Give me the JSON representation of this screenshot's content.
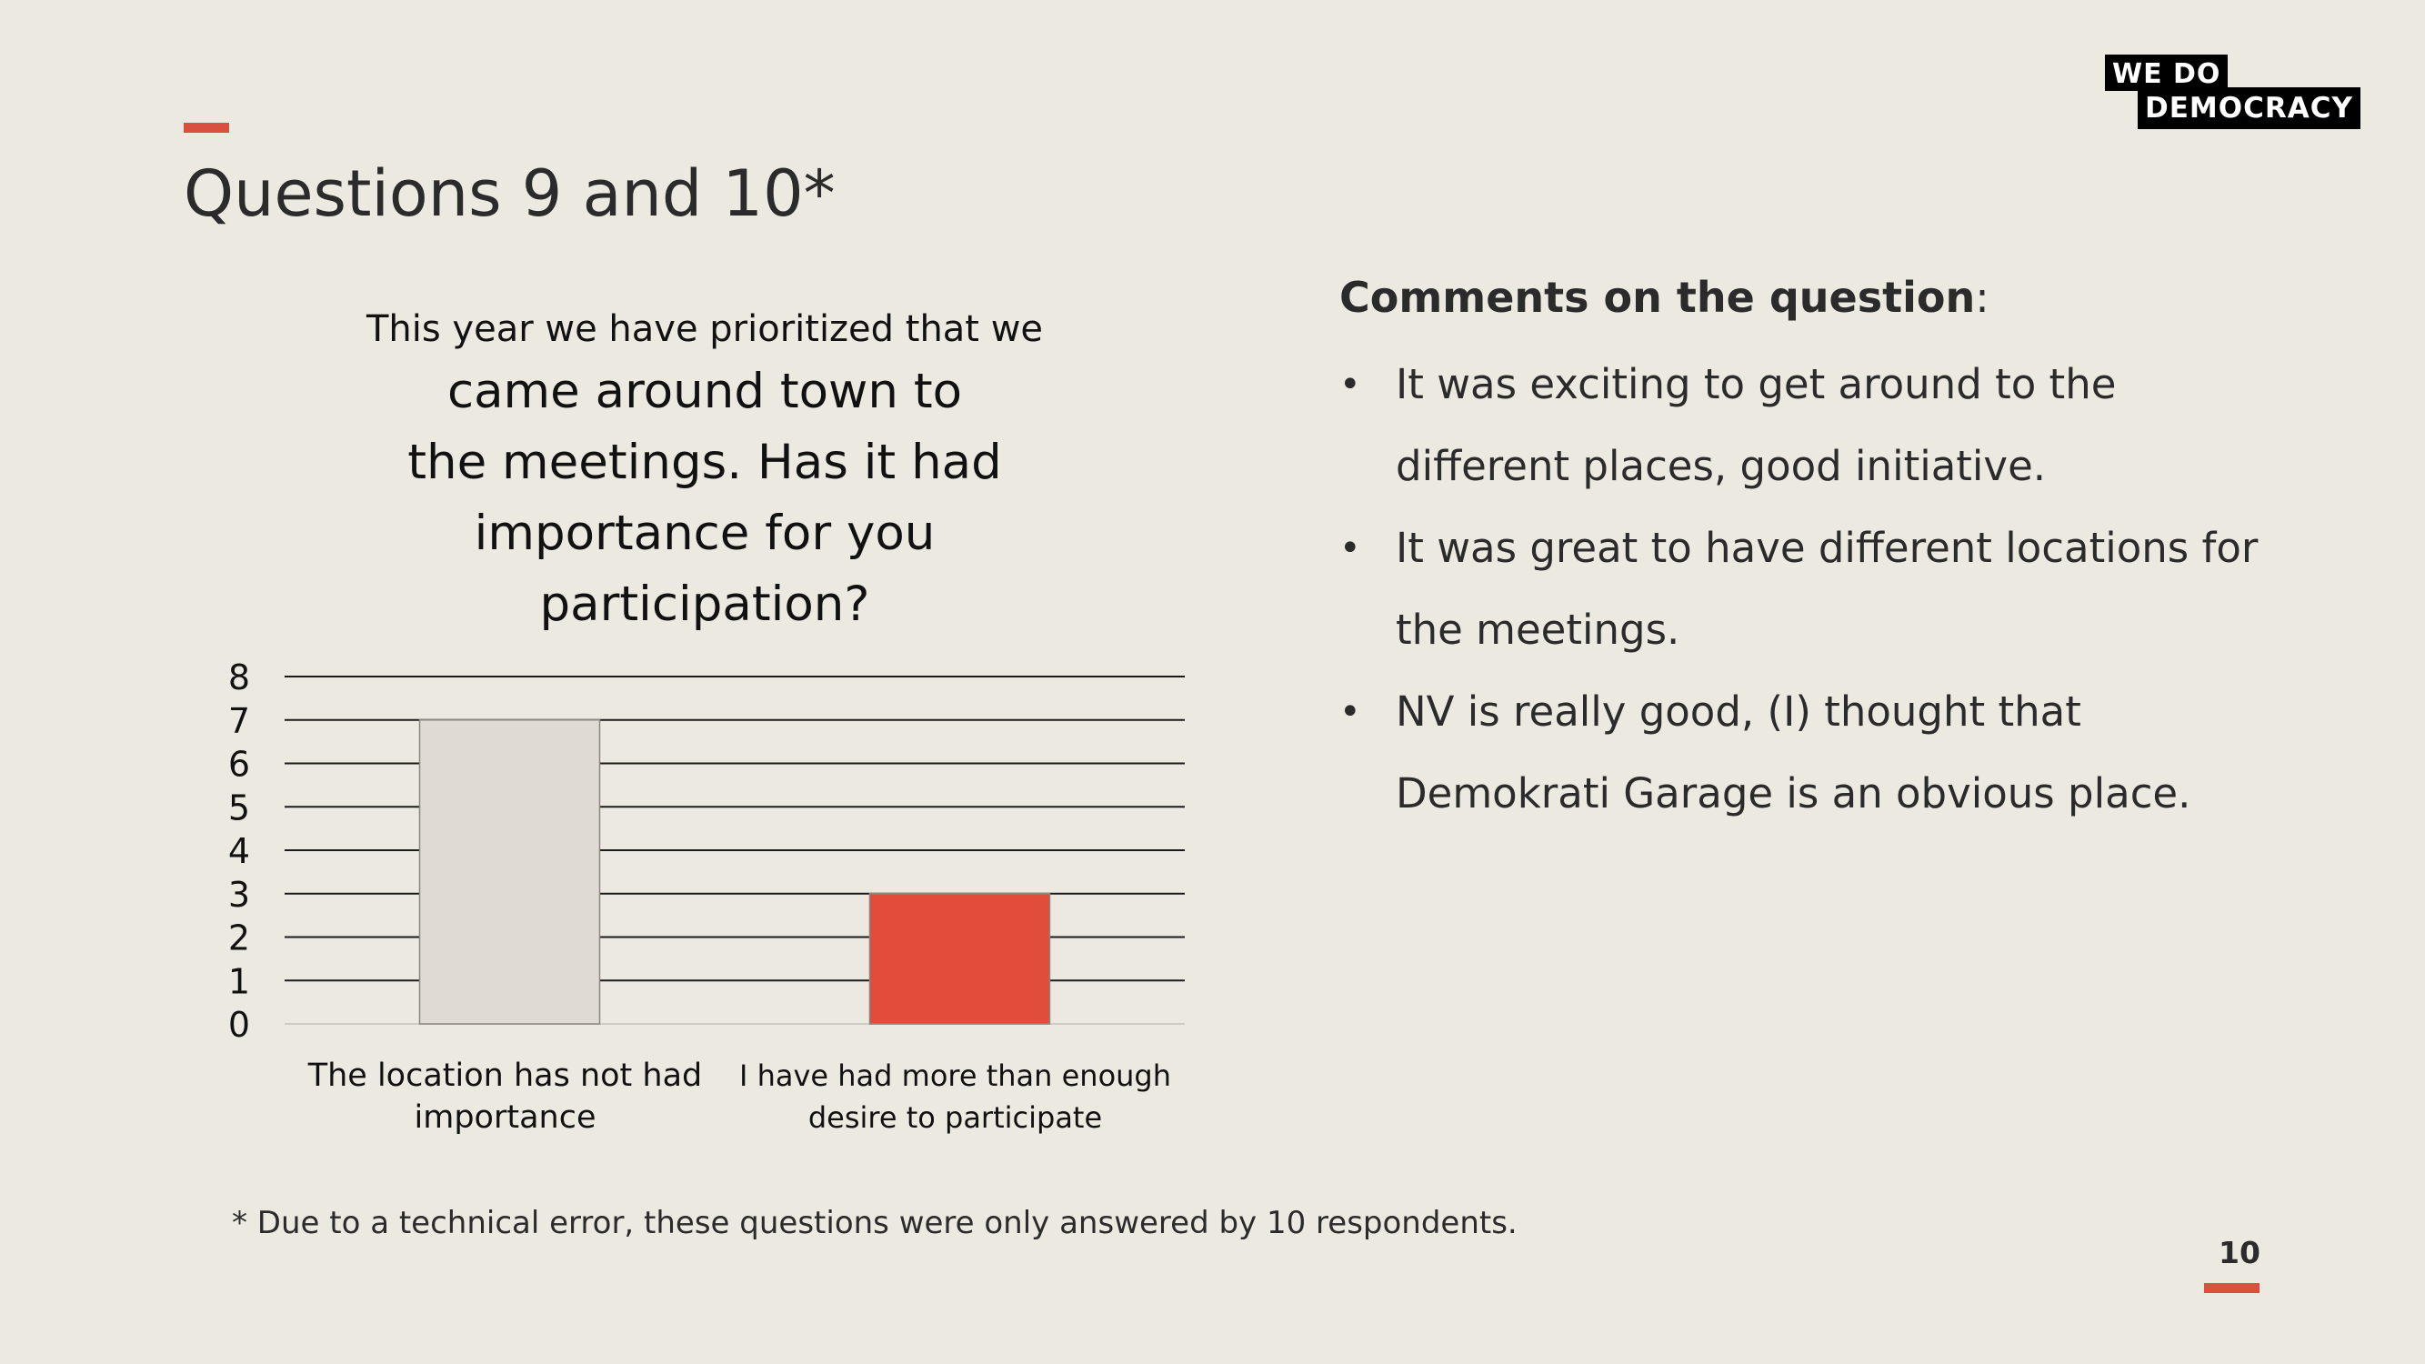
{
  "slide": {
    "title": "Questions 9 and 10*",
    "footnote": "* Due to a technical error, these questions were only answered by 10 respondents.",
    "page_number": "10",
    "accent_color": "#D9503F",
    "background_color": "#ECEAE0"
  },
  "logo": {
    "line1": "WE  DO",
    "line2": "DEMOCRACY"
  },
  "chart_title": {
    "line1": "This year we have prioritized that we",
    "line2": "came around town to",
    "line3": "the meetings. Has it had",
    "line4": "importance for you",
    "line5": "participation?"
  },
  "comments": {
    "heading": "Comments on the question",
    "heading_suffix": ":",
    "items": [
      {
        "line1": "It was exciting to get around to the",
        "line2": "different places, good initiative."
      },
      {
        "line1": "It was great to have different locations for",
        "line2": "the meetings."
      },
      {
        "line1": "NV is really good, (I) thought that",
        "line2": "Demokrati Garage is an obvious place."
      }
    ]
  },
  "chart_data": {
    "type": "bar",
    "categories": [
      [
        "The location has not had",
        "importance"
      ],
      [
        "I have had more than enough",
        "desire to participate"
      ]
    ],
    "values": [
      7,
      3
    ],
    "colors": [
      "#E0DAD4",
      "#E24C3A"
    ],
    "ylim": [
      0,
      8
    ],
    "yticks": [
      "0",
      "1",
      "2",
      "3",
      "4",
      "5",
      "6",
      "7",
      "8"
    ],
    "grid": true,
    "legend": false,
    "xlabel": "",
    "ylabel": ""
  }
}
